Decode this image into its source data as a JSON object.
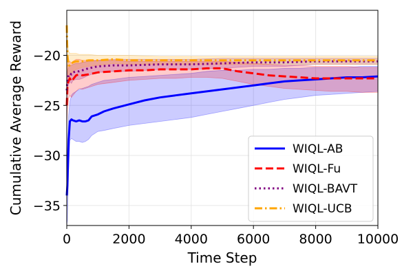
{
  "chart_data": {
    "type": "line",
    "title": "",
    "xlabel": "Time Step",
    "ylabel": "Cumulative Average Reward",
    "xlim": [
      0,
      10000
    ],
    "ylim": [
      -37,
      -15.5
    ],
    "xticks": [
      0,
      2000,
      4000,
      6000,
      8000,
      10000
    ],
    "xtick_labels": [
      "0",
      "2000",
      "4000",
      "6000",
      "8000",
      "10000"
    ],
    "yticks": [
      -35,
      -30,
      -25,
      -20
    ],
    "ytick_labels": [
      "−35",
      "−30",
      "−25",
      "−20"
    ],
    "grid": true,
    "legend_position": "lower-right",
    "series": [
      {
        "name": "WIQL-AB",
        "color": "#0000ff",
        "dash": "solid",
        "x": [
          0,
          20,
          60,
          100,
          150,
          200,
          300,
          400,
          500,
          600,
          700,
          800,
          1000,
          1200,
          1500,
          2000,
          2500,
          3000,
          3500,
          4000,
          4500,
          5000,
          5500,
          6000,
          6500,
          7000,
          7500,
          8000,
          8500,
          9000,
          9500,
          10000
        ],
        "y": [
          -34.0,
          -33.0,
          -28.5,
          -26.6,
          -26.4,
          -26.5,
          -26.6,
          -26.5,
          -26.6,
          -26.6,
          -26.5,
          -26.1,
          -25.9,
          -25.6,
          -25.3,
          -24.9,
          -24.5,
          -24.2,
          -24.0,
          -23.8,
          -23.6,
          -23.4,
          -23.2,
          -23.0,
          -22.8,
          -22.6,
          -22.5,
          -22.4,
          -22.3,
          -22.2,
          -22.2,
          -22.1
        ],
        "upper": [
          -31.0,
          -29.5,
          -26.0,
          -24.6,
          -24.0,
          -23.8,
          -23.6,
          -23.4,
          -23.3,
          -23.2,
          -23.1,
          -22.9,
          -22.7,
          -22.5,
          -22.4,
          -22.2,
          -22.1,
          -22.0,
          -21.9,
          -21.8,
          -21.6,
          -21.5,
          -21.5,
          -21.4,
          -21.4,
          -21.3,
          -21.3,
          -21.2,
          -21.2,
          -21.2,
          -21.1,
          -21.1
        ],
        "lower": [
          -37.0,
          -36.5,
          -31.5,
          -28.5,
          -28.3,
          -28.4,
          -28.6,
          -28.6,
          -28.7,
          -28.6,
          -28.4,
          -28.0,
          -27.6,
          -27.5,
          -27.3,
          -27.0,
          -26.8,
          -26.6,
          -26.4,
          -26.2,
          -25.9,
          -25.6,
          -25.3,
          -25.0,
          -24.7,
          -24.4,
          -24.2,
          -24.0,
          -23.9,
          -23.8,
          -23.7,
          -23.6
        ]
      },
      {
        "name": "WIQL-Fu",
        "color": "#ff0000",
        "dash": "dashed",
        "x": [
          0,
          20,
          60,
          100,
          150,
          200,
          300,
          400,
          500,
          700,
          1000,
          1500,
          2000,
          2500,
          3000,
          3500,
          4000,
          4500,
          5000,
          5500,
          6000,
          6500,
          7000,
          7500,
          8000,
          8500,
          9000,
          9500,
          10000
        ],
        "y": [
          -25.0,
          -23.2,
          -22.5,
          -22.3,
          -22.6,
          -22.4,
          -22.0,
          -21.9,
          -22.0,
          -21.9,
          -21.7,
          -21.6,
          -21.5,
          -21.5,
          -21.4,
          -21.4,
          -21.4,
          -21.3,
          -21.3,
          -21.6,
          -21.8,
          -22.0,
          -22.1,
          -22.2,
          -22.3,
          -22.3,
          -22.3,
          -22.3,
          -22.3
        ],
        "upper": [
          -23.0,
          -21.0,
          -20.6,
          -20.6,
          -20.8,
          -20.6,
          -20.4,
          -20.4,
          -20.5,
          -20.5,
          -20.5,
          -20.5,
          -20.6,
          -20.6,
          -20.6,
          -20.6,
          -20.6,
          -20.6,
          -20.6,
          -20.7,
          -20.8,
          -20.9,
          -21.0,
          -21.0,
          -21.1,
          -21.1,
          -21.1,
          -21.2,
          -21.2
        ],
        "lower": [
          -27.5,
          -25.5,
          -24.3,
          -24.0,
          -24.2,
          -24.0,
          -23.6,
          -23.3,
          -23.4,
          -23.2,
          -22.9,
          -22.7,
          -22.5,
          -22.4,
          -22.3,
          -22.3,
          -22.2,
          -22.2,
          -22.3,
          -22.6,
          -22.9,
          -23.1,
          -23.3,
          -23.4,
          -23.5,
          -23.6,
          -23.6,
          -23.7,
          -23.7
        ]
      },
      {
        "name": "WIQL-BAVT",
        "color": "#800080",
        "dash": "dotted",
        "x": [
          0,
          20,
          60,
          100,
          150,
          200,
          300,
          400,
          500,
          700,
          1000,
          1500,
          2000,
          3000,
          4000,
          5000,
          6000,
          7000,
          8000,
          9000,
          10000
        ],
        "y": [
          -23.5,
          -22.5,
          -22.0,
          -21.8,
          -21.9,
          -21.7,
          -21.6,
          -21.6,
          -21.5,
          -21.3,
          -21.1,
          -21.0,
          -21.0,
          -20.9,
          -20.9,
          -20.8,
          -20.7,
          -20.7,
          -20.6,
          -20.6,
          -20.6
        ],
        "upper": [
          -22.5,
          -21.6,
          -21.2,
          -21.0,
          -21.0,
          -20.9,
          -20.8,
          -20.8,
          -20.7,
          -20.6,
          -20.5,
          -20.4,
          -20.4,
          -20.4,
          -20.4,
          -20.3,
          -20.3,
          -20.3,
          -20.3,
          -20.3,
          -20.3
        ],
        "lower": [
          -24.5,
          -23.4,
          -22.8,
          -22.6,
          -22.8,
          -22.5,
          -22.4,
          -22.4,
          -22.3,
          -22.0,
          -21.7,
          -21.6,
          -21.6,
          -21.4,
          -21.4,
          -21.3,
          -21.1,
          -21.1,
          -20.9,
          -20.9,
          -20.9
        ]
      },
      {
        "name": "WIQL-UCB",
        "color": "#ffa500",
        "dash": "dashdot",
        "x": [
          0,
          20,
          60,
          100,
          150,
          200,
          300,
          400,
          500,
          700,
          1000,
          1500,
          2000,
          3000,
          4000,
          5000,
          6000,
          7000,
          8000,
          9000,
          10000
        ],
        "y": [
          -17.0,
          -20.0,
          -21.0,
          -21.0,
          -20.8,
          -20.7,
          -20.6,
          -20.6,
          -20.6,
          -20.5,
          -20.5,
          -20.4,
          -20.5,
          -20.5,
          -20.5,
          -20.5,
          -20.5,
          -20.5,
          -20.5,
          -20.5,
          -20.5
        ],
        "upper": [
          -15.5,
          -18.5,
          -19.6,
          -19.8,
          -19.8,
          -19.8,
          -19.8,
          -19.9,
          -19.9,
          -19.9,
          -20.0,
          -20.0,
          -20.0,
          -20.1,
          -20.1,
          -20.1,
          -20.1,
          -20.1,
          -20.1,
          -20.1,
          -20.1
        ],
        "lower": [
          -18.5,
          -21.5,
          -22.4,
          -22.2,
          -21.8,
          -21.6,
          -21.4,
          -21.3,
          -21.2,
          -21.1,
          -21.0,
          -20.8,
          -20.9,
          -20.9,
          -20.9,
          -20.9,
          -20.9,
          -20.9,
          -20.9,
          -20.9,
          -20.9
        ]
      }
    ]
  }
}
